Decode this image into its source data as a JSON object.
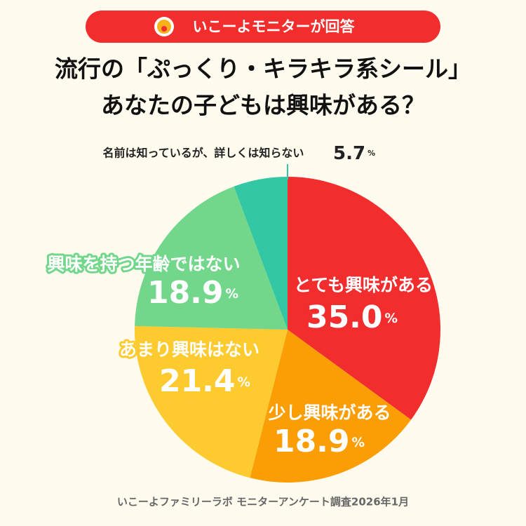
{
  "badge": "いこーよモニターが回答",
  "chart_data": {
    "type": "pie",
    "title": [
      "流行の「ぷっくり・キラキラ系シール」",
      "あなたの子どもは興味がある？"
    ],
    "categories": [
      "とても興味がある",
      "少し興味がある",
      "あまり興味はない",
      "興味を持つ年齢ではない",
      "名前は知っているが、詳しくは知らない"
    ],
    "values": [
      35.0,
      18.9,
      21.4,
      18.9,
      5.7
    ],
    "value_labels": [
      "35.0",
      "18.9",
      "21.4",
      "18.9",
      "5.7"
    ],
    "unit": "%",
    "colors": [
      "#f22d2e",
      "#fb9e05",
      "#fdca2f",
      "#72d78a",
      "#34c7a3"
    ]
  },
  "source": "いこーよファミリーラボ モニターアンケート調査2026年1月"
}
